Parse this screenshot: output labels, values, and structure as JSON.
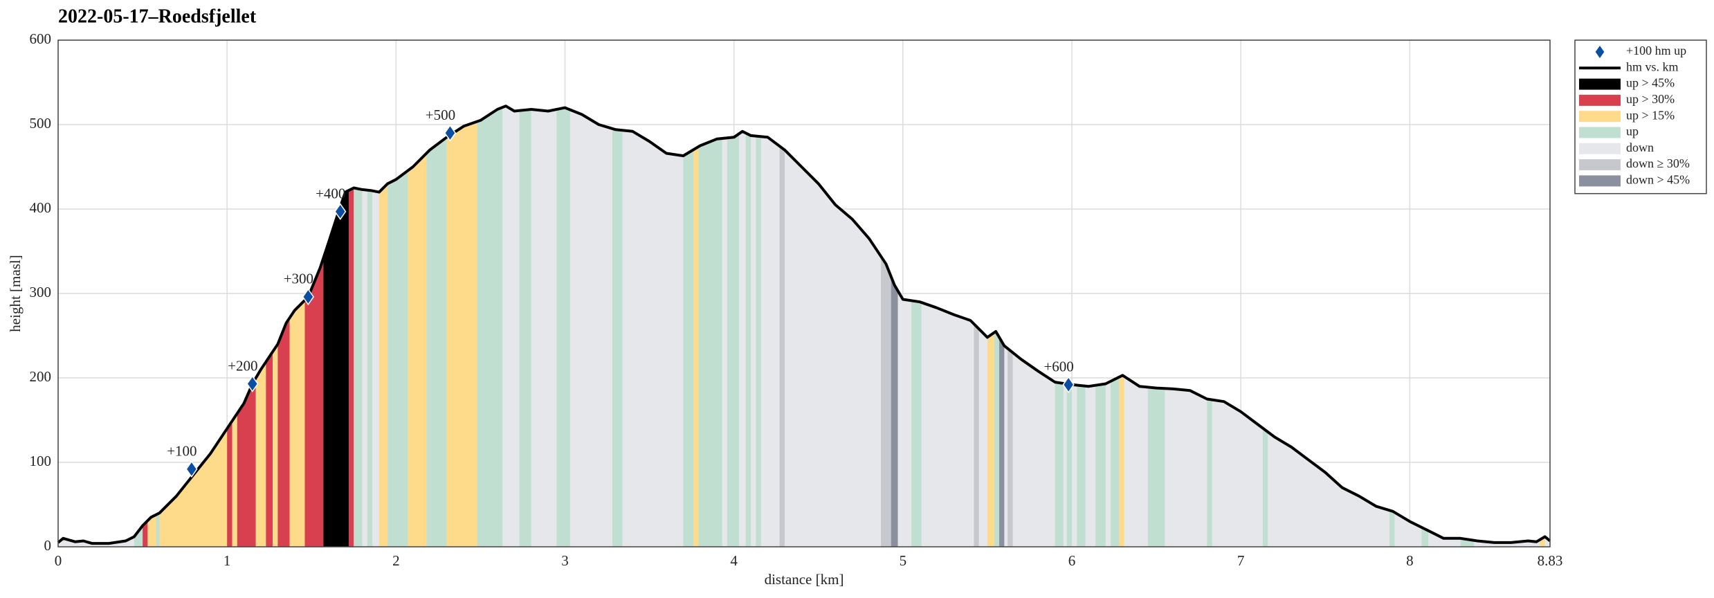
{
  "chart_data": {
    "type": "elevation-profile",
    "title": "2022-05-17–Roedsfjellet",
    "xlabel": "distance [km]",
    "ylabel": "height [masl]",
    "xlim": [
      0,
      8.83
    ],
    "ylim": [
      0,
      600
    ],
    "xticks": [
      0,
      1,
      2,
      3,
      4,
      5,
      6,
      7,
      8,
      8.83
    ],
    "yticks": [
      0,
      100,
      200,
      300,
      400,
      500,
      600
    ],
    "grid": true,
    "legend_position": "outside-right",
    "legend": [
      {
        "name": "+100 hm up",
        "color": "#0b4ea2",
        "mark": "diamond"
      },
      {
        "name": "hm vs. km",
        "color": "#000000",
        "mark": "line"
      },
      {
        "name": "up > 45%",
        "color": "#000000",
        "mark": "patch"
      },
      {
        "name": "up > 30%",
        "color": "#d9404f",
        "mark": "patch"
      },
      {
        "name": "up > 15%",
        "color": "#fddb8a",
        "mark": "patch"
      },
      {
        "name": "up",
        "color": "#c1dfd0",
        "mark": "patch"
      },
      {
        "name": "down",
        "color": "#e6e7eb",
        "mark": "patch"
      },
      {
        "name": "down ≥ 30%",
        "color": "#c6c8cd",
        "mark": "patch"
      },
      {
        "name": "down > 45%",
        "color": "#8a909d",
        "mark": "patch"
      }
    ],
    "profile": {
      "x": [
        0,
        0.03,
        0.1,
        0.15,
        0.2,
        0.3,
        0.4,
        0.45,
        0.5,
        0.55,
        0.6,
        0.7,
        0.8,
        0.9,
        1.0,
        1.1,
        1.15,
        1.2,
        1.3,
        1.35,
        1.4,
        1.48,
        1.55,
        1.6,
        1.66,
        1.7,
        1.75,
        1.8,
        1.85,
        1.9,
        1.95,
        2.0,
        2.1,
        2.2,
        2.3,
        2.4,
        2.5,
        2.6,
        2.65,
        2.7,
        2.8,
        2.9,
        3.0,
        3.1,
        3.2,
        3.3,
        3.4,
        3.5,
        3.6,
        3.7,
        3.8,
        3.9,
        4.0,
        4.05,
        4.1,
        4.2,
        4.3,
        4.4,
        4.5,
        4.6,
        4.7,
        4.8,
        4.9,
        4.95,
        5.0,
        5.1,
        5.2,
        5.3,
        5.4,
        5.5,
        5.55,
        5.6,
        5.7,
        5.8,
        5.9,
        6.0,
        6.1,
        6.2,
        6.3,
        6.4,
        6.5,
        6.6,
        6.7,
        6.8,
        6.9,
        7.0,
        7.1,
        7.2,
        7.3,
        7.4,
        7.5,
        7.6,
        7.7,
        7.8,
        7.9,
        8.0,
        8.1,
        8.2,
        8.3,
        8.4,
        8.5,
        8.6,
        8.7,
        8.75,
        8.8,
        8.83
      ],
      "y": [
        5,
        10,
        6,
        7,
        4,
        4,
        7,
        12,
        25,
        35,
        40,
        60,
        85,
        110,
        140,
        170,
        193,
        210,
        240,
        265,
        280,
        296,
        330,
        360,
        397,
        420,
        425,
        423,
        422,
        420,
        430,
        435,
        450,
        470,
        485,
        498,
        505,
        518,
        522,
        516,
        518,
        516,
        520,
        512,
        500,
        494,
        492,
        480,
        466,
        463,
        475,
        483,
        485,
        492,
        487,
        485,
        470,
        450,
        430,
        405,
        388,
        365,
        335,
        310,
        293,
        290,
        283,
        275,
        268,
        248,
        255,
        238,
        222,
        208,
        195,
        192,
        190,
        193,
        203,
        190,
        188,
        187,
        185,
        175,
        172,
        160,
        145,
        130,
        118,
        103,
        88,
        70,
        60,
        48,
        42,
        30,
        20,
        10,
        10,
        7,
        5,
        5,
        7,
        6,
        12,
        7
      ]
    },
    "markers": {
      "x": [
        0.79,
        1.15,
        1.48,
        1.67,
        2.32,
        5.98
      ],
      "y": [
        92,
        193,
        296,
        397,
        490,
        192
      ],
      "labels": [
        "+100",
        "+200",
        "+300",
        "+400",
        "+500",
        "+600"
      ]
    },
    "bands": [
      {
        "start": 0.45,
        "end": 0.5,
        "kind": "up"
      },
      {
        "start": 0.5,
        "end": 0.53,
        "kind": "up > 30%"
      },
      {
        "start": 0.53,
        "end": 0.58,
        "kind": "up > 15%"
      },
      {
        "start": 0.58,
        "end": 0.6,
        "kind": "up"
      },
      {
        "start": 0.6,
        "end": 1.0,
        "kind": "up > 15%"
      },
      {
        "start": 1.0,
        "end": 1.03,
        "kind": "up > 30%"
      },
      {
        "start": 1.03,
        "end": 1.06,
        "kind": "up > 15%"
      },
      {
        "start": 1.06,
        "end": 1.17,
        "kind": "up > 30%"
      },
      {
        "start": 1.17,
        "end": 1.23,
        "kind": "up > 15%"
      },
      {
        "start": 1.23,
        "end": 1.27,
        "kind": "up > 30%"
      },
      {
        "start": 1.27,
        "end": 1.3,
        "kind": "up > 15%"
      },
      {
        "start": 1.3,
        "end": 1.37,
        "kind": "up > 30%"
      },
      {
        "start": 1.37,
        "end": 1.46,
        "kind": "up > 15%"
      },
      {
        "start": 1.46,
        "end": 1.57,
        "kind": "up > 30%"
      },
      {
        "start": 1.57,
        "end": 1.72,
        "kind": "up > 45%"
      },
      {
        "start": 1.72,
        "end": 1.75,
        "kind": "up > 30%"
      },
      {
        "start": 1.75,
        "end": 1.8,
        "kind": "up"
      },
      {
        "start": 1.83,
        "end": 1.86,
        "kind": "up"
      },
      {
        "start": 1.9,
        "end": 1.95,
        "kind": "up > 15%"
      },
      {
        "start": 1.95,
        "end": 2.07,
        "kind": "up"
      },
      {
        "start": 2.07,
        "end": 2.18,
        "kind": "up > 15%"
      },
      {
        "start": 2.18,
        "end": 2.3,
        "kind": "up"
      },
      {
        "start": 2.3,
        "end": 2.38,
        "kind": "up > 15%"
      },
      {
        "start": 2.38,
        "end": 2.48,
        "kind": "up > 15%"
      },
      {
        "start": 2.48,
        "end": 2.63,
        "kind": "up"
      },
      {
        "start": 2.73,
        "end": 2.8,
        "kind": "up"
      },
      {
        "start": 2.95,
        "end": 3.03,
        "kind": "up"
      },
      {
        "start": 3.28,
        "end": 3.34,
        "kind": "up"
      },
      {
        "start": 3.7,
        "end": 3.76,
        "kind": "up"
      },
      {
        "start": 3.76,
        "end": 3.79,
        "kind": "up > 15%"
      },
      {
        "start": 3.79,
        "end": 3.93,
        "kind": "up"
      },
      {
        "start": 3.96,
        "end": 4.03,
        "kind": "up"
      },
      {
        "start": 4.07,
        "end": 4.1,
        "kind": "up"
      },
      {
        "start": 4.13,
        "end": 4.16,
        "kind": "up"
      },
      {
        "start": 4.27,
        "end": 4.3,
        "kind": "down ≥ 30%"
      },
      {
        "start": 4.87,
        "end": 4.93,
        "kind": "down ≥ 30%"
      },
      {
        "start": 4.93,
        "end": 4.97,
        "kind": "down > 45%"
      },
      {
        "start": 5.05,
        "end": 5.11,
        "kind": "up"
      },
      {
        "start": 5.42,
        "end": 5.45,
        "kind": "down ≥ 30%"
      },
      {
        "start": 5.5,
        "end": 5.54,
        "kind": "up > 15%"
      },
      {
        "start": 5.54,
        "end": 5.57,
        "kind": "up"
      },
      {
        "start": 5.57,
        "end": 5.6,
        "kind": "down > 45%"
      },
      {
        "start": 5.62,
        "end": 5.65,
        "kind": "down ≥ 30%"
      },
      {
        "start": 5.9,
        "end": 5.95,
        "kind": "up"
      },
      {
        "start": 5.97,
        "end": 6.0,
        "kind": "up"
      },
      {
        "start": 6.03,
        "end": 6.08,
        "kind": "up"
      },
      {
        "start": 6.14,
        "end": 6.2,
        "kind": "up"
      },
      {
        "start": 6.23,
        "end": 6.28,
        "kind": "up"
      },
      {
        "start": 6.28,
        "end": 6.31,
        "kind": "up > 15%"
      },
      {
        "start": 6.45,
        "end": 6.55,
        "kind": "up"
      },
      {
        "start": 6.8,
        "end": 6.83,
        "kind": "up"
      },
      {
        "start": 7.13,
        "end": 7.16,
        "kind": "up"
      },
      {
        "start": 7.88,
        "end": 7.91,
        "kind": "up"
      },
      {
        "start": 8.07,
        "end": 8.11,
        "kind": "up"
      },
      {
        "start": 8.3,
        "end": 8.38,
        "kind": "up"
      },
      {
        "start": 8.77,
        "end": 8.8,
        "kind": "up > 15%"
      }
    ]
  }
}
